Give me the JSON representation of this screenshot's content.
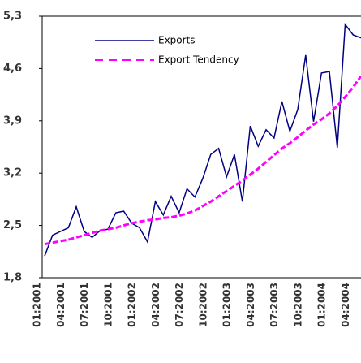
{
  "chart_data": {
    "type": "line",
    "categories": [
      "01:2001",
      null,
      null,
      "04:2001",
      null,
      null,
      "07:2001",
      null,
      null,
      "10:2001",
      null,
      null,
      "01:2002",
      null,
      null,
      "04:2002",
      null,
      null,
      "07:2002",
      null,
      null,
      "10:2002",
      null,
      null,
      "01:2003",
      null,
      null,
      "04:2003",
      null,
      null,
      "07:2003",
      null,
      null,
      "10:2003",
      null,
      null,
      "01:2004",
      null,
      null,
      "04:2004",
      null
    ],
    "series": [
      {
        "name": "Exports",
        "color": "#000080",
        "dashed": false,
        "values": [
          2.09,
          2.37,
          2.42,
          2.47,
          2.75,
          2.42,
          2.34,
          2.43,
          2.45,
          2.67,
          2.69,
          2.53,
          2.47,
          2.28,
          2.82,
          2.64,
          2.89,
          2.67,
          2.99,
          2.88,
          3.13,
          3.45,
          3.53,
          3.15,
          3.45,
          2.82,
          3.83,
          3.56,
          3.78,
          3.67,
          4.16,
          3.76,
          4.05,
          4.78,
          3.89,
          4.54,
          4.56,
          3.54,
          5.19,
          5.05,
          5.01
        ]
      },
      {
        "name": "Export Tendency",
        "color": "#ff00ff",
        "dashed": true,
        "values": [
          2.25,
          2.27,
          2.29,
          2.31,
          2.34,
          2.37,
          2.4,
          2.43,
          2.45,
          2.47,
          2.5,
          2.53,
          2.55,
          2.57,
          2.58,
          2.6,
          2.61,
          2.63,
          2.66,
          2.7,
          2.76,
          2.82,
          2.89,
          2.96,
          3.03,
          3.1,
          3.18,
          3.26,
          3.35,
          3.44,
          3.53,
          3.6,
          3.68,
          3.77,
          3.85,
          3.92,
          4.0,
          4.1,
          4.22,
          4.35,
          4.5
        ]
      }
    ],
    "ylim": [
      1.8,
      5.3
    ],
    "yticks": [
      {
        "value": 1.8,
        "label": "1,8"
      },
      {
        "value": 2.5,
        "label": "2,5"
      },
      {
        "value": 3.2,
        "label": "3,2"
      },
      {
        "value": 3.9,
        "label": "3,9"
      },
      {
        "value": 4.6,
        "label": "4,6"
      },
      {
        "value": 5.3,
        "label": "5,3"
      }
    ]
  }
}
